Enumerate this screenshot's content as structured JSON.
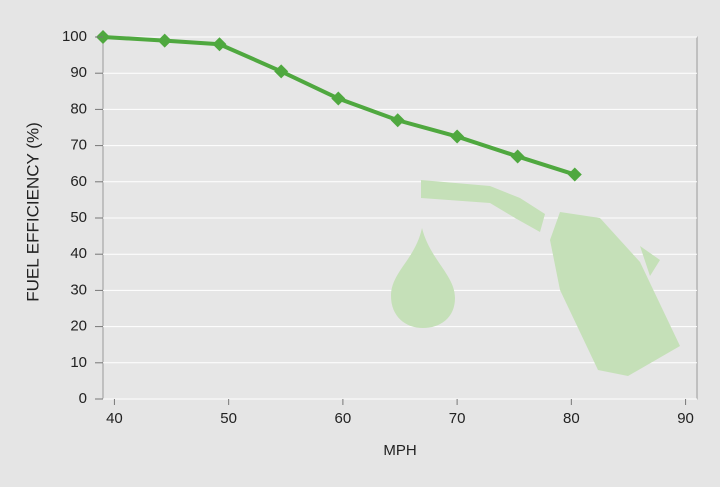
{
  "chart_data": {
    "type": "line",
    "x_label": "MPH",
    "y_label": "FUEL EFFICIENCY (%)",
    "x": [
      39,
      44.4,
      49.2,
      54.6,
      59.6,
      64.8,
      70,
      75.3,
      80.3
    ],
    "series": [
      {
        "color": "#4fa83f",
        "values": [
          100,
          99,
          98,
          90.5,
          83,
          77,
          72.5,
          67,
          62
        ]
      }
    ],
    "xlim": [
      39,
      91
    ],
    "ylim": [
      0,
      100
    ],
    "xticks": [
      40,
      50,
      60,
      70,
      80,
      90
    ],
    "yticks": [
      0,
      10,
      20,
      30,
      40,
      50,
      60,
      70,
      80,
      90,
      100
    ],
    "grid": true
  }
}
